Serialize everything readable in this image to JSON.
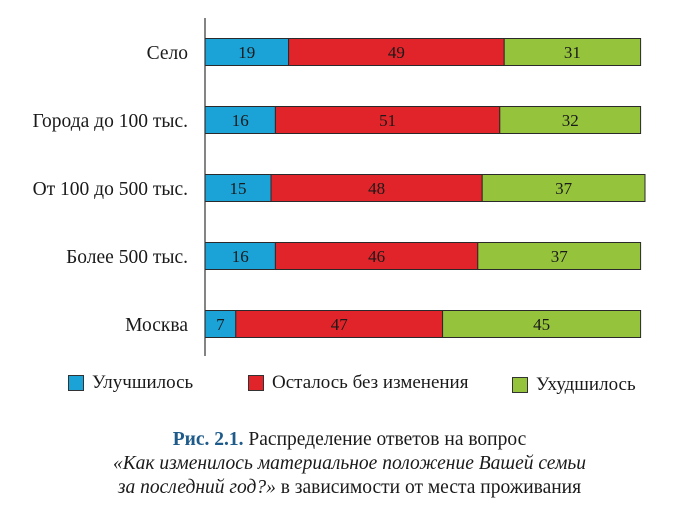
{
  "chart_data": {
    "type": "bar",
    "orientation": "horizontal",
    "stacked": true,
    "categories": [
      "Село",
      "Города до 100 тыс.",
      "От 100 до 500 тыс.",
      "Более 500 тыс.",
      "Москва"
    ],
    "series": [
      {
        "name": "Улучшилось",
        "values": [
          19,
          16,
          15,
          16,
          7
        ],
        "color": "#1ba2d6"
      },
      {
        "name": "Осталось без изменения",
        "values": [
          49,
          51,
          48,
          46,
          47
        ],
        "color": "#e0242a"
      },
      {
        "name": "Ухудшилось",
        "values": [
          31,
          32,
          37,
          37,
          45
        ],
        "color": "#95c43c"
      }
    ],
    "xlim": [
      0,
      100
    ],
    "grid": false,
    "legend_position": "bottom"
  },
  "caption": {
    "figure_label": "Рис. 2.1.",
    "line1": "Распределение ответов на вопрос",
    "line2_italic": "«Как изменилось материальное положение Вашей семьи",
    "line3_italic": "за последний год?»",
    "line3_rest": "в зависимости от места проживания"
  }
}
